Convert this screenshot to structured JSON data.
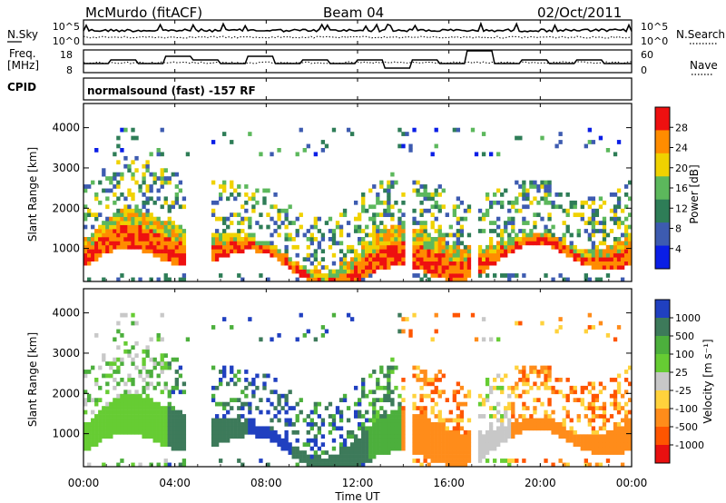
{
  "header": {
    "station": "McMurdo (fitACF)",
    "beam": "Beam 04",
    "date": "02/Oct/2011"
  },
  "noise_panel": {
    "left_label": "N.Sky",
    "right_label": "N.Search",
    "left_ticks": [
      "10^5",
      "10^0"
    ],
    "right_ticks": [
      "10^5",
      "10^0"
    ]
  },
  "freq_panel": {
    "left_label_line1": "Freq.",
    "left_label_line2": "[MHz]",
    "right_label": "Nave",
    "left_ticks": [
      "18",
      "8"
    ],
    "right_ticks": [
      "60",
      "0"
    ]
  },
  "cpid": {
    "label": "CPID",
    "text": "normalsound (fast) -157 RF"
  },
  "chart_data": [
    {
      "type": "heatmap",
      "name": "power",
      "ylabel": "Slant Range [km]",
      "ylim": [
        180,
        4600
      ],
      "yticks": [
        "1000",
        "2000",
        "3000",
        "4000"
      ],
      "colorbar_label": "Power [dB]",
      "colorbar_ticks": [
        "4",
        "8",
        "12",
        "16",
        "20",
        "24",
        "28"
      ],
      "colors": [
        "#0a1ee6",
        "#3d5bb0",
        "#2e7d57",
        "#5cb85c",
        "#f0d200",
        "#ff8c00",
        "#ee1010"
      ]
    },
    {
      "type": "heatmap",
      "name": "velocity",
      "ylabel": "Slant Range [km]",
      "ylim": [
        180,
        4600
      ],
      "yticks": [
        "1000",
        "2000",
        "3000",
        "4000"
      ],
      "colorbar_label": "Velocity [m s⁻¹]",
      "colorbar_ticks": [
        "1000",
        "500",
        "100",
        "25",
        "-25",
        "-100",
        "-500",
        "-1000"
      ],
      "colors": [
        "#2040c0",
        "#3d7a5a",
        "#4caf3c",
        "#66cc33",
        "#c8c8c8",
        "#ffd23c",
        "#ff8c1a",
        "#ff5500",
        "#e81010"
      ]
    }
  ],
  "time_axis": {
    "label": "Time UT",
    "ticks": [
      "00:00",
      "04:00",
      "08:00",
      "12:00",
      "16:00",
      "20:00",
      "00:00"
    ]
  }
}
